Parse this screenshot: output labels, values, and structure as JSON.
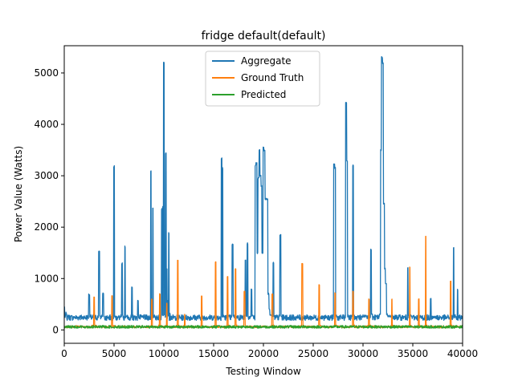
{
  "chart_data": {
    "type": "line",
    "title": "fridge default(default)",
    "xlabel": "Testing Window",
    "ylabel": "Power Value (Watts)",
    "xlim": [
      0,
      40000
    ],
    "ylim": [
      -260,
      5530
    ],
    "xticks": [
      0,
      5000,
      10000,
      15000,
      20000,
      25000,
      30000,
      35000,
      40000
    ],
    "xtick_labels": [
      "0",
      "5000",
      "10000",
      "15000",
      "20000",
      "25000",
      "30000",
      "35000",
      "40000"
    ],
    "yticks": [
      0,
      1000,
      2000,
      3000,
      4000,
      5000
    ],
    "ytick_labels": [
      "0",
      "1000",
      "2000",
      "3000",
      "4000",
      "5000"
    ],
    "grid": false,
    "legend_position": "top-center",
    "series": [
      {
        "name": "Aggregate",
        "color": "#1f77b4",
        "x": [
          0,
          200,
          400,
          1000,
          1500,
          2000,
          2400,
          2500,
          2600,
          3000,
          3400,
          3500,
          3600,
          3800,
          3900,
          4000,
          4400,
          4900,
          5000,
          5100,
          5400,
          5700,
          5800,
          5900,
          6100,
          6200,
          6300,
          6700,
          6800,
          6900,
          7300,
          7400,
          7500,
          8000,
          8600,
          8700,
          8800,
          8900,
          9000,
          9100,
          9500,
          9800,
          9900,
          10000,
          10100,
          10200,
          10300,
          10400,
          10500,
          10600,
          10700,
          10800,
          10900,
          11000,
          11300,
          11800,
          12300,
          12800,
          13300,
          13800,
          14300,
          14800,
          15300,
          15800,
          15900,
          16000,
          16100,
          16500,
          16900,
          17000,
          17100,
          17300,
          17800,
          18200,
          18300,
          18400,
          18700,
          18800,
          18900,
          19200,
          19300,
          19400,
          19500,
          19600,
          19700,
          19800,
          19900,
          20000,
          20100,
          20200,
          20300,
          20400,
          20500,
          20600,
          20700,
          20800,
          20900,
          21000,
          21200,
          21600,
          21700,
          21800,
          22100,
          22200,
          22300,
          22800,
          23300,
          23800,
          24300,
          24800,
          25300,
          25800,
          26300,
          26800,
          27100,
          27200,
          27300,
          27800,
          28300,
          28400,
          28500,
          28900,
          29000,
          29100,
          29500,
          30000,
          30700,
          30800,
          30900,
          31300,
          31700,
          31800,
          31900,
          32000,
          32100,
          32200,
          32300,
          32400,
          32500,
          32600,
          32700,
          32800,
          33000,
          33500,
          34000,
          34500,
          34800,
          34900,
          35000,
          35400,
          35800,
          36300,
          36800,
          37200,
          37300,
          37400,
          37800,
          38300,
          38800,
          39100,
          39200,
          39300,
          39500,
          39600,
          39700,
          39900,
          40000
        ],
        "y": [
          430,
          330,
          280,
          250,
          240,
          230,
          230,
          690,
          230,
          240,
          250,
          1520,
          280,
          260,
          710,
          250,
          240,
          260,
          3180,
          260,
          250,
          240,
          1290,
          250,
          1620,
          260,
          250,
          260,
          820,
          250,
          240,
          560,
          240,
          230,
          240,
          3090,
          250,
          2380,
          260,
          270,
          290,
          2350,
          2400,
          5200,
          500,
          3430,
          1190,
          560,
          1880,
          320,
          280,
          250,
          230,
          200,
          190,
          180,
          180,
          200,
          230,
          240,
          260,
          250,
          260,
          3340,
          3150,
          280,
          260,
          260,
          1660,
          280,
          250,
          250,
          260,
          1350,
          270,
          1680,
          260,
          800,
          280,
          3200,
          3250,
          1500,
          2950,
          3500,
          3000,
          2800,
          1500,
          3550,
          3500,
          2550,
          2550,
          2550,
          700,
          400,
          300,
          280,
          270,
          1300,
          270,
          260,
          1850,
          260,
          240,
          220,
          200,
          180,
          170,
          170,
          180,
          190,
          200,
          210,
          220,
          230,
          3220,
          3150,
          280,
          250,
          4420,
          3300,
          260,
          260,
          3200,
          280,
          270,
          260,
          250,
          1560,
          300,
          270,
          300,
          3500,
          5300,
          5200,
          2460,
          1200,
          900,
          300,
          260,
          250,
          250,
          240,
          240,
          230,
          230,
          1220,
          280,
          250,
          240,
          230,
          240,
          240,
          620,
          250,
          240,
          250,
          250,
          240,
          230,
          1610,
          250,
          240,
          780,
          250,
          240,
          230,
          220
        ],
        "base": 240,
        "noise": 110
      },
      {
        "name": "Ground Truth",
        "color": "#ff7f0e",
        "x": [
          0,
          1200,
          2800,
          3000,
          3200,
          4600,
          4800,
          5000,
          8700,
          8800,
          9500,
          9600,
          9700,
          10200,
          10300,
          11300,
          11400,
          11500,
          12000,
          12100,
          13700,
          13800,
          13900,
          15100,
          15200,
          15300,
          16300,
          16400,
          16500,
          17100,
          17200,
          17300,
          18000,
          18100,
          18200,
          20800,
          20900,
          21000,
          23800,
          23900,
          24000,
          25500,
          25600,
          25700,
          27100,
          27200,
          27300,
          28900,
          29000,
          29100,
          30500,
          30600,
          30700,
          32800,
          32900,
          33000,
          34600,
          34700,
          34800,
          35500,
          35600,
          35700,
          36200,
          36300,
          36400,
          38700,
          38800,
          38900,
          40000
        ],
        "y": [
          60,
          80,
          90,
          640,
          90,
          80,
          660,
          90,
          80,
          600,
          90,
          700,
          90,
          80,
          520,
          90,
          1350,
          90,
          80,
          300,
          80,
          660,
          80,
          90,
          1320,
          90,
          80,
          1040,
          90,
          80,
          1190,
          90,
          80,
          750,
          90,
          80,
          700,
          90,
          80,
          1290,
          90,
          80,
          880,
          90,
          80,
          720,
          90,
          80,
          750,
          90,
          80,
          600,
          90,
          80,
          600,
          90,
          80,
          1220,
          90,
          80,
          600,
          90,
          80,
          1820,
          90,
          80,
          950,
          90,
          80
        ],
        "base": 60,
        "noise": 40
      },
      {
        "name": "Predicted",
        "color": "#2ca02c",
        "x": [
          0,
          10000,
          20000,
          30000,
          40000
        ],
        "y": [
          60,
          60,
          60,
          60,
          60
        ],
        "base": 60,
        "noise": 55
      }
    ]
  }
}
